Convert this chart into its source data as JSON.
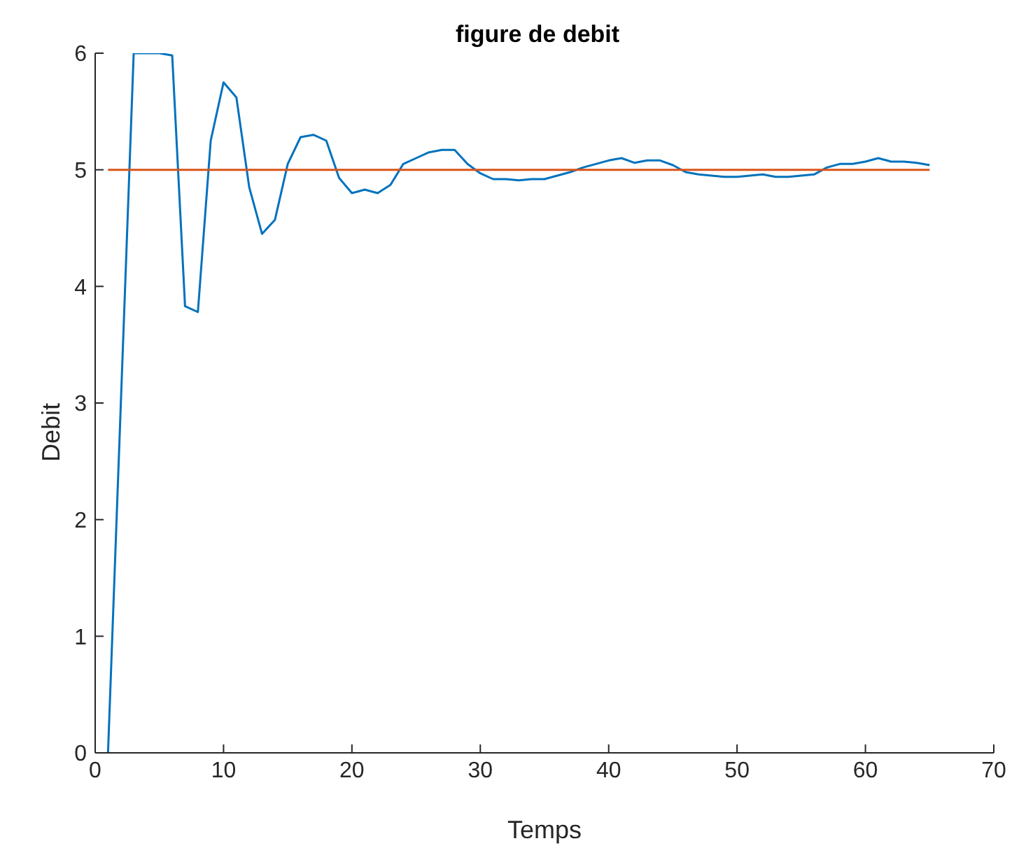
{
  "chart_data": {
    "type": "line",
    "title": "figure de debit",
    "xlabel": "Temps",
    "ylabel": "Debit",
    "xlim": [
      0,
      70
    ],
    "xticks": [
      0,
      10,
      20,
      30,
      40,
      50,
      60,
      70
    ],
    "ylim": [
      0,
      6
    ],
    "yticks": [
      0,
      1,
      2,
      3,
      4,
      5,
      6
    ],
    "grid": false,
    "legend": false,
    "marker": "none",
    "line_style": "solid",
    "series": [
      {
        "color": "#0072bd",
        "x": [
          1,
          2,
          3,
          4,
          5,
          6,
          7,
          8,
          9,
          10,
          11,
          12,
          13,
          14,
          15,
          16,
          17,
          18,
          19,
          20,
          21,
          22,
          23,
          24,
          25,
          26,
          27,
          28,
          29,
          30,
          31,
          32,
          33,
          34,
          35,
          36,
          37,
          38,
          39,
          40,
          41,
          42,
          43,
          44,
          45,
          46,
          47,
          48,
          49,
          50,
          51,
          52,
          53,
          54,
          55,
          56,
          57,
          58,
          59,
          60,
          61,
          62,
          63,
          64,
          65
        ],
        "values": [
          0,
          3,
          6,
          6,
          6,
          5.98,
          3.83,
          3.78,
          5.25,
          5.75,
          5.62,
          4.85,
          4.45,
          4.57,
          5.05,
          5.28,
          5.3,
          5.25,
          4.93,
          4.8,
          4.83,
          4.8,
          4.87,
          5.05,
          5.1,
          5.15,
          5.17,
          5.17,
          5.05,
          4.97,
          4.92,
          4.92,
          4.91,
          4.92,
          4.92,
          4.95,
          4.98,
          5.02,
          5.05,
          5.08,
          5.1,
          5.06,
          5.08,
          5.08,
          5.04,
          4.98,
          4.96,
          4.95,
          4.94,
          4.94,
          4.95,
          4.96,
          4.94,
          4.94,
          4.95,
          4.96,
          5.02,
          5.05,
          5.05,
          5.07,
          5.1,
          5.07,
          5.07,
          5.06,
          5.04
        ]
      },
      {
        "color": "#d95319",
        "x": [
          1,
          65
        ],
        "values": [
          5,
          5
        ]
      }
    ]
  }
}
